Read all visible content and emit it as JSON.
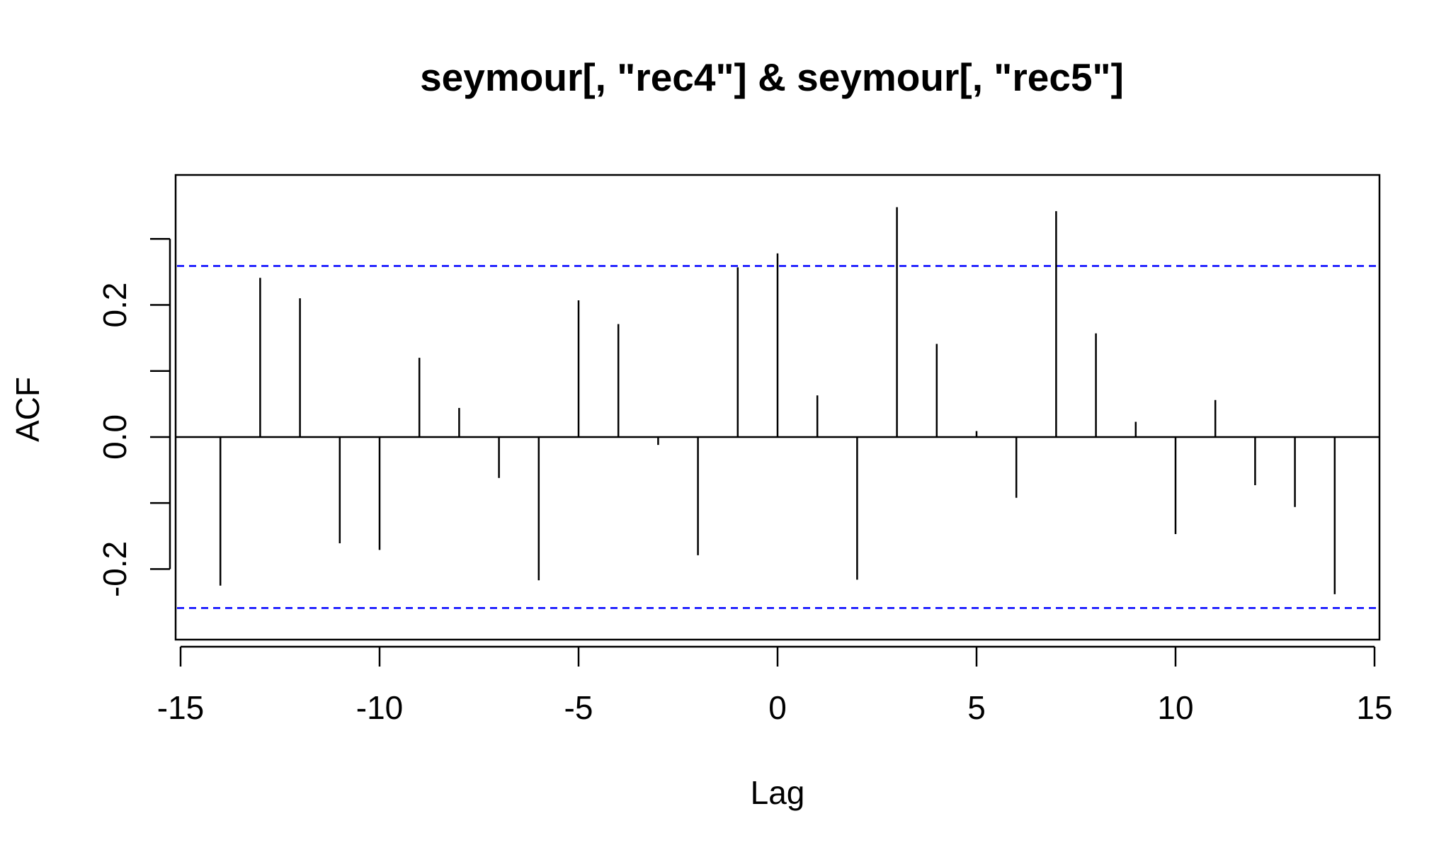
{
  "chart_data": {
    "type": "bar",
    "title": "seymour[, \"rec4\"] & seymour[, \"rec5\"]",
    "xlabel": "Lag",
    "ylabel": "ACF",
    "xlim": [
      -15,
      15
    ],
    "ylim": [
      -0.28,
      0.37
    ],
    "x_ticks": [
      -15,
      -10,
      -5,
      0,
      5,
      10,
      15
    ],
    "x_tick_labels": [
      "-15",
      "-10",
      "-5",
      "0",
      "5",
      "10",
      "15"
    ],
    "y_ticks": [
      -0.2,
      -0.1,
      0.0,
      0.1,
      0.2,
      0.3
    ],
    "y_tick_labels": [
      "-0.2",
      "",
      "0.0",
      "",
      "0.2",
      ""
    ],
    "grid": false,
    "series": [
      {
        "x": [
          -14,
          -13,
          -12,
          -11,
          -10,
          -9,
          -8,
          -7,
          -6,
          -5,
          -4,
          -3,
          -2,
          -1,
          0,
          1,
          2,
          3,
          4,
          5,
          6,
          7,
          8,
          9,
          10,
          11,
          12,
          13,
          14
        ],
        "values": [
          -0.225,
          0.241,
          0.21,
          -0.161,
          -0.171,
          0.12,
          0.044,
          -0.062,
          -0.217,
          0.207,
          0.171,
          -0.012,
          -0.179,
          0.257,
          0.278,
          0.063,
          -0.216,
          0.348,
          0.141,
          0.009,
          -0.092,
          0.342,
          0.157,
          0.023,
          -0.147,
          0.056,
          -0.073,
          -0.106,
          -0.238
        ]
      }
    ],
    "confidence_band": {
      "upper": 0.259,
      "lower": -0.259,
      "color": "#0000ff"
    },
    "colors": {
      "bars": "#000000",
      "frame": "#000000",
      "zero_line": "#000000"
    }
  }
}
